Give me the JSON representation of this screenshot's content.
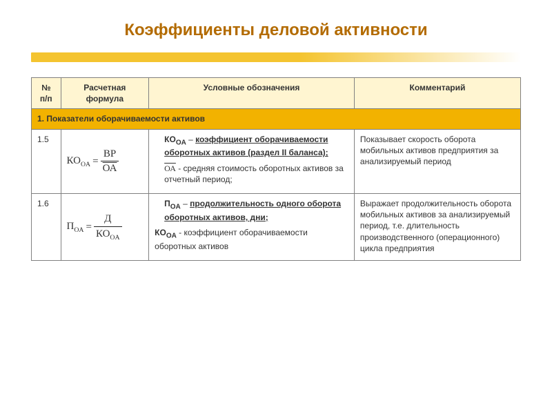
{
  "title": "Коэффициенты деловой активности",
  "colors": {
    "title_color": "#b36b00",
    "accent_gradient_from": "#f4c430",
    "accent_gradient_to": "#ffffff",
    "header_bg": "#fff5d1",
    "section_bg": "#f2b200",
    "border": "#808080",
    "text": "#333333"
  },
  "columns": {
    "num": "№ п/п",
    "formula": "Расчетная формула",
    "definitions": "Условные обозначения",
    "comment": "Комментарий"
  },
  "section_title": "1. Показатели оборачиваемости активов",
  "rows": [
    {
      "num": "1.5",
      "formula": {
        "lhs_main": "КО",
        "lhs_sub": "OA",
        "numerator": "ВР",
        "denominator": "ОА",
        "denominator_overline": true
      },
      "definitions": [
        {
          "sym_main": "КО",
          "sym_sub": "OA",
          "after_sym": " – ",
          "term": "коэффициент оборачиваемости оборотных активов (раздел II баланса);",
          "indent": true
        },
        {
          "sym_overline": "ОА",
          "after_sym": " - средняя стоимость оборотных активов за отчетный период;",
          "indent": true
        }
      ],
      "comment": "Показывает скорость оборота мобильных активов предприятия за анализируемый период"
    },
    {
      "num": "1.6",
      "formula": {
        "lhs_main": "П",
        "lhs_sub": "OA",
        "numerator": "Д",
        "denominator_main": "КО",
        "denominator_sub": "OA"
      },
      "definitions": [
        {
          "sym_main": "П",
          "sym_sub": "OA",
          "after_sym": " – ",
          "term": "продолжительность одного оборота оборотных активов, дни;",
          "indent": true
        },
        {
          "sym_main": "КО",
          "sym_sub": "OA",
          "after_sym": " - коэффициент оборачиваемости оборотных активов",
          "indent": false
        }
      ],
      "comment": "Выражает продолжительность оборота мобильных активов за анализируемый период, т.е. длительность производственного (операционного) цикла предприятия"
    }
  ]
}
